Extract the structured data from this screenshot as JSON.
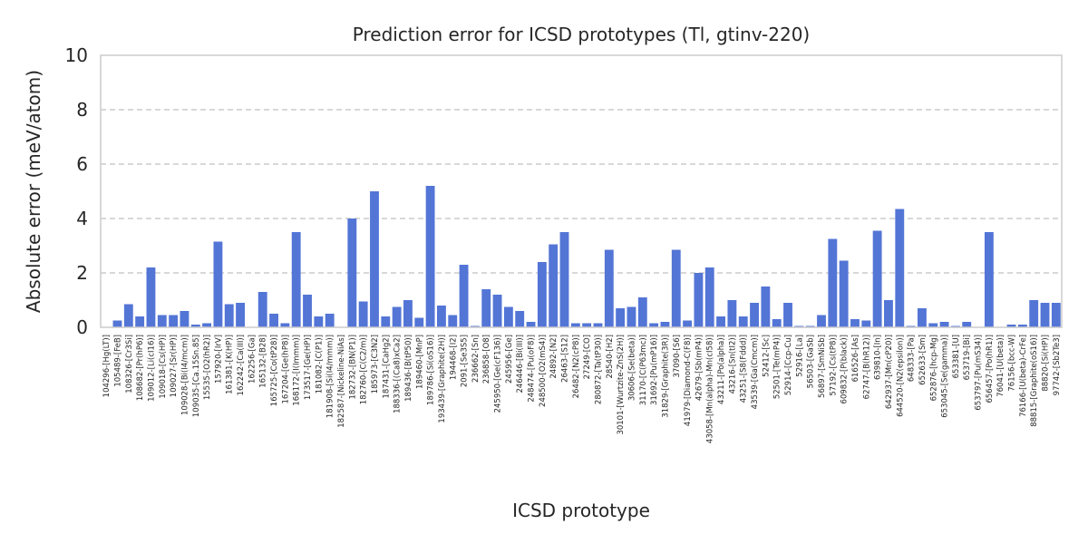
{
  "chart_data": {
    "type": "bar",
    "title": "Prediction error for ICSD prototypes (Tl, gtinv-220)",
    "xlabel": "ICSD prototype",
    "ylabel": "Absolute error (meV/atom)",
    "ylim": [
      0,
      10
    ],
    "yticks": [
      0,
      2,
      4,
      6,
      8,
      10
    ],
    "grid": "y-dashed",
    "bar_color": "#5375d6",
    "categories": [
      "104296-[Hg(LT)]",
      "105489-[FeB]",
      "108326-[Cr3Si]",
      "108682-[Pr(hP6)]",
      "109012-[Li(cI16)]",
      "109018-[Cs(HP)]",
      "109027-[Sr(HP)]",
      "109028-[Bi(I4/mcm)]",
      "109035-[Ca.15Sn.85]",
      "15535-[O2(hR2)]",
      "157920-[IrV]",
      "161381-[K(HP)]",
      "162242-[Ca(III)]",
      "162256-[Ga]",
      "165132-[B28]",
      "165725-[Co(tP28)]",
      "167204-[Ge(hP8)]",
      "168172-[I(Immm)]",
      "173517-[Ge(HP)]",
      "181082-[C(P1)]",
      "181908-[Si(I4/mmm)]",
      "182587-[Nickeline-NiAs]",
      "182732-[BN(P1)]",
      "182760-[C(C2/m)]",
      "185973-[C3N2]",
      "187431-[CaHg2]",
      "188336-[(Ca8)xCa2]",
      "189436-[B(tP50)]",
      "189460-[MnP]",
      "189786-[Si(oS16)]",
      "193439-[Graphite(2H)]",
      "194468-[I2]",
      "2091-[Se3S5]",
      "236662-[Sn]",
      "236858-[O8]",
      "245950-[Ge(cF136)]",
      "245956-[Ge]",
      "246446-[Bi(III)]",
      "248474-[Pu(oF8)]",
      "248500-[O2(mS4)]",
      "24892-[N2]",
      "26463-[S12]",
      "26482-[N2(cP8)]",
      "27249-[CO]",
      "280872-[Ta(tP30)]",
      "28540-[H2]",
      "30101-[Wurtzite-ZnS(2H)]",
      "30606-[Se(beta)]",
      "31170-[C(P63mc)]",
      "31692-[Pu(mP16)]",
      "31829-[Graphite(3R)]",
      "37090-[S6]",
      "41979-[Diamond-C(F8)]",
      "42679-[Sb(mP4)]",
      "43058-[Mn(alpha)-Mn(cI58)]",
      "43211-[Po(alpha)]",
      "43216-[Sn(tI2)]",
      "43251-[S8(Fddd)]",
      "43539-[Ga(Cmcm)]",
      "52412-[Sc]",
      "52501-[Te(mP4)]",
      "52914-[Ccp-Cu]",
      "52916-[La]",
      "56503-[GaSb]",
      "56897-[SmNiSb]",
      "57192-[Cs(tP8)]",
      "609832-[P(black)]",
      "616526-[As]",
      "62747-[B(hR12)]",
      "639810-[In]",
      "642937-[Mn(cP20)]",
      "644520-[N2(epsilon)]",
      "648333-[Pa]",
      "652633-[Sm]",
      "652876-[hcp-Mg]",
      "653045-[Se(gamma)]",
      "653381-[U]",
      "653719-[Bi]",
      "653797-[Pu(mS34)]",
      "656457-[Po(hR1)]",
      "76041-[U(beta)]",
      "76156-[bcc-W]",
      "76166-[U(beta)-CrFe]",
      "88815-[Graphite(oS16)]",
      "88820-[Si(HP)]",
      "97742-[Sb2Te3]"
    ],
    "values": [
      0.0,
      0.25,
      0.85,
      0.4,
      2.2,
      0.45,
      0.45,
      0.6,
      0.1,
      0.15,
      3.15,
      0.85,
      0.9,
      0.0,
      1.3,
      0.5,
      0.15,
      3.5,
      1.2,
      0.4,
      0.5,
      0.0,
      4.0,
      0.95,
      5.0,
      0.4,
      0.75,
      1.0,
      0.35,
      5.2,
      0.8,
      0.45,
      2.3,
      0.05,
      1.4,
      1.2,
      0.75,
      0.6,
      0.2,
      2.4,
      3.05,
      3.5,
      0.15,
      0.15,
      0.15,
      2.85,
      0.7,
      0.75,
      1.1,
      0.15,
      0.2,
      2.85,
      0.25,
      2.0,
      2.2,
      0.4,
      1.0,
      0.4,
      0.9,
      1.5,
      0.3,
      0.9,
      0.05,
      0.05,
      0.45,
      3.25,
      2.45,
      0.3,
      0.25,
      3.55,
      1.0,
      4.35,
      0.05,
      0.7,
      0.15,
      0.2,
      0.05,
      0.2,
      0.0,
      3.5,
      0.0,
      0.1,
      0.1,
      1.0,
      0.9,
      0.9
    ]
  }
}
